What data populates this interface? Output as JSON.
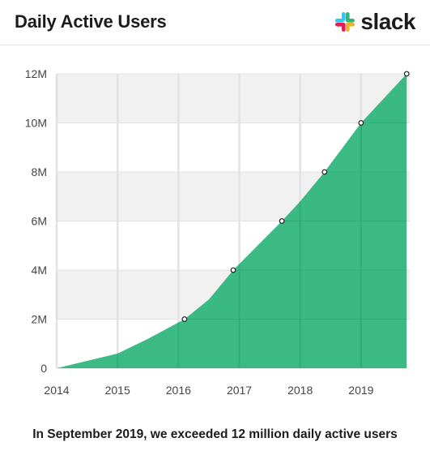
{
  "header": {
    "title": "Daily Active Users",
    "logo": {
      "icon": "slack-hash-icon",
      "text": "slack"
    }
  },
  "caption": "In September 2019, we exceeded 12 million daily active users",
  "colors": {
    "area": "#2db57b",
    "area_dark": "#1f9d66",
    "band": "#f1f1f1",
    "grid": "#e2e2e2",
    "axis_text": "#454545"
  },
  "chart_data": {
    "type": "area",
    "title": "",
    "xlabel": "",
    "ylabel": "",
    "xlim": [
      2014,
      2019.8
    ],
    "ylim": [
      0,
      12
    ],
    "x_ticks": [
      2014,
      2015,
      2016,
      2017,
      2018,
      2019
    ],
    "x_tick_labels": [
      "2014",
      "2015",
      "2016",
      "2017",
      "2018",
      "2019"
    ],
    "y_ticks": [
      0,
      2,
      4,
      6,
      8,
      10,
      12
    ],
    "y_tick_labels": [
      "0",
      "2M",
      "4M",
      "6M",
      "8M",
      "10M",
      "12M"
    ],
    "grid": true,
    "series": [
      {
        "values_unit": "millions",
        "points": [
          {
            "x": 2014.0,
            "y": 0.0
          },
          {
            "x": 2015.0,
            "y": 0.6
          },
          {
            "x": 2015.5,
            "y": 1.2
          },
          {
            "x": 2016.1,
            "y": 2.0
          },
          {
            "x": 2016.5,
            "y": 2.8
          },
          {
            "x": 2016.9,
            "y": 4.0
          },
          {
            "x": 2017.3,
            "y": 5.0
          },
          {
            "x": 2017.7,
            "y": 6.0
          },
          {
            "x": 2018.0,
            "y": 6.8
          },
          {
            "x": 2018.4,
            "y": 8.0
          },
          {
            "x": 2019.0,
            "y": 10.0
          },
          {
            "x": 2019.75,
            "y": 12.0
          }
        ],
        "markers": [
          {
            "x": 2016.1,
            "y": 2.0
          },
          {
            "x": 2016.9,
            "y": 4.0
          },
          {
            "x": 2017.7,
            "y": 6.0
          },
          {
            "x": 2018.4,
            "y": 8.0
          },
          {
            "x": 2019.0,
            "y": 10.0
          },
          {
            "x": 2019.75,
            "y": 12.0
          }
        ]
      }
    ]
  }
}
